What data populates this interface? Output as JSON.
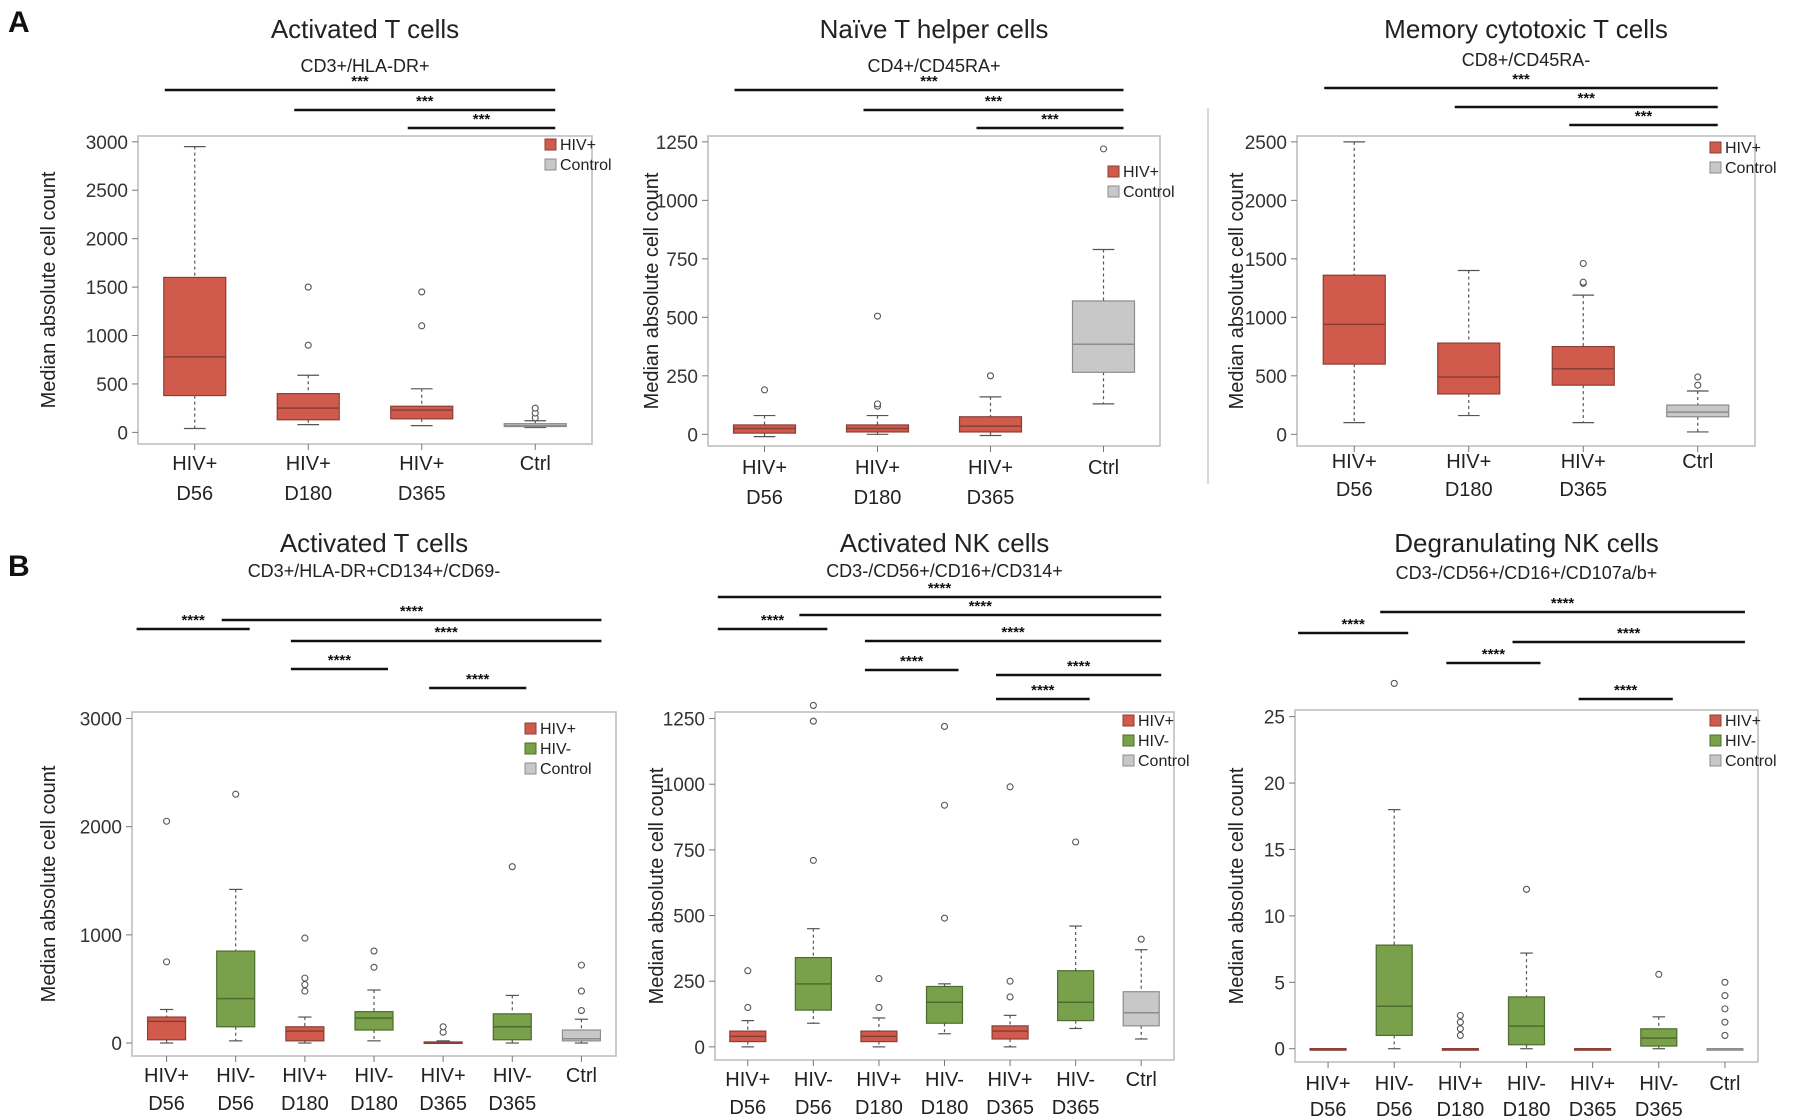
{
  "panel_labels": [
    "A",
    "B"
  ],
  "colors": {
    "hiv_pos": "#d05a4c",
    "hiv_neg": "#79a04a",
    "control": "#c8c8c8",
    "frame": "#bbbbbb"
  },
  "chart_data": [
    {
      "type": "boxplot",
      "panel": "A",
      "title": "Activated T cells",
      "subtitle": "CD3+/HLA-DR+",
      "ylabel": "Median absolute cell count",
      "ylim": [
        0,
        3000
      ],
      "yticks": [
        0,
        500,
        1000,
        1500,
        2000,
        2500,
        3000
      ],
      "legend": [
        {
          "label": "HIV+",
          "group": "hiv_pos"
        },
        {
          "label": "Control",
          "group": "control"
        }
      ],
      "boxes": [
        {
          "x1": "HIV+",
          "x2": "D56",
          "group": "hiv_pos",
          "whislo": 40,
          "q1": 380,
          "med": 780,
          "q3": 1600,
          "whishi": 2950,
          "fliers": []
        },
        {
          "x1": "HIV+",
          "x2": "D180",
          "group": "hiv_pos",
          "whislo": 80,
          "q1": 130,
          "med": 250,
          "q3": 400,
          "whishi": 590,
          "fliers": [
            900,
            1500
          ]
        },
        {
          "x1": "HIV+",
          "x2": "D365",
          "group": "hiv_pos",
          "whislo": 70,
          "q1": 140,
          "med": 230,
          "q3": 270,
          "whishi": 450,
          "fliers": [
            1100,
            1450
          ]
        },
        {
          "x1": "Ctrl",
          "x2": "",
          "group": "control",
          "whislo": 50,
          "q1": 60,
          "med": 70,
          "q3": 90,
          "whishi": 120,
          "fliers": [
            150,
            200,
            250
          ]
        }
      ],
      "comparisons": [
        {
          "from": 0,
          "to": 3,
          "label": "***"
        },
        {
          "from": 1,
          "to": 3,
          "label": "***"
        },
        {
          "from": 2,
          "to": 3,
          "label": "***"
        }
      ]
    },
    {
      "type": "boxplot",
      "panel": "",
      "title": "Naïve T helper cells",
      "subtitle": "CD4+/CD45RA+",
      "ylabel": "Median absolute cell count",
      "ylim": [
        0,
        1250
      ],
      "yticks": [
        0,
        250,
        500,
        750,
        1000,
        1250
      ],
      "legend": [
        {
          "label": "HIV+",
          "group": "hiv_pos"
        },
        {
          "label": "Control",
          "group": "control"
        }
      ],
      "boxes": [
        {
          "x1": "HIV+",
          "x2": "D56",
          "group": "hiv_pos",
          "whislo": -10,
          "q1": 5,
          "med": 25,
          "q3": 40,
          "whishi": 80,
          "fliers": [
            190
          ]
        },
        {
          "x1": "HIV+",
          "x2": "D180",
          "group": "hiv_pos",
          "whislo": 0,
          "q1": 10,
          "med": 25,
          "q3": 40,
          "whishi": 80,
          "fliers": [
            120,
            130,
            505
          ]
        },
        {
          "x1": "HIV+",
          "x2": "D365",
          "group": "hiv_pos",
          "whislo": -5,
          "q1": 10,
          "med": 35,
          "q3": 75,
          "whishi": 160,
          "fliers": [
            250
          ]
        },
        {
          "x1": "Ctrl",
          "x2": "",
          "group": "control",
          "whislo": 130,
          "q1": 265,
          "med": 385,
          "q3": 570,
          "whishi": 790,
          "fliers": [
            1220
          ]
        }
      ],
      "comparisons": [
        {
          "from": 0,
          "to": 3,
          "label": "***"
        },
        {
          "from": 1,
          "to": 3,
          "label": "***"
        },
        {
          "from": 2,
          "to": 3,
          "label": "***"
        }
      ]
    },
    {
      "type": "boxplot",
      "panel": "",
      "title": "Memory  cytotoxic T cells",
      "subtitle": "CD8+/CD45RA-",
      "ylabel": "Median absolute cell count",
      "ylim": [
        0,
        2500
      ],
      "yticks": [
        0,
        500,
        1000,
        1500,
        2000,
        2500
      ],
      "legend": [
        {
          "label": "HIV+",
          "group": "hiv_pos"
        },
        {
          "label": "Control",
          "group": "control"
        }
      ],
      "boxes": [
        {
          "x1": "HIV+",
          "x2": "D56",
          "group": "hiv_pos",
          "whislo": 100,
          "q1": 600,
          "med": 940,
          "q3": 1360,
          "whishi": 2500,
          "fliers": []
        },
        {
          "x1": "HIV+",
          "x2": "D180",
          "group": "hiv_pos",
          "whislo": 160,
          "q1": 345,
          "med": 490,
          "q3": 780,
          "whishi": 1400,
          "fliers": []
        },
        {
          "x1": "HIV+",
          "x2": "D365",
          "group": "hiv_pos",
          "whislo": 100,
          "q1": 420,
          "med": 560,
          "q3": 750,
          "whishi": 1190,
          "fliers": [
            1290,
            1300,
            1460
          ]
        },
        {
          "x1": "Ctrl",
          "x2": "",
          "group": "control",
          "whislo": 20,
          "q1": 150,
          "med": 190,
          "q3": 250,
          "whishi": 370,
          "fliers": [
            420,
            490
          ]
        }
      ],
      "comparisons": [
        {
          "from": 0,
          "to": 3,
          "label": "***"
        },
        {
          "from": 1,
          "to": 3,
          "label": "***"
        },
        {
          "from": 2,
          "to": 3,
          "label": "***"
        }
      ]
    },
    {
      "type": "boxplot",
      "panel": "B",
      "title": "Activated T cells",
      "subtitle": "CD3+/HLA-DR+CD134+/CD69-",
      "ylabel": "Median absolute cell count",
      "ylim": [
        0,
        3000
      ],
      "yticks": [
        0,
        1000,
        2000,
        3000
      ],
      "legend": [
        {
          "label": "HIV+",
          "group": "hiv_pos"
        },
        {
          "label": "HIV-",
          "group": "hiv_neg"
        },
        {
          "label": "Control",
          "group": "control"
        }
      ],
      "boxes": [
        {
          "x1": "HIV+",
          "x2": "D56",
          "group": "hiv_pos",
          "whislo": 0,
          "q1": 30,
          "med": 200,
          "q3": 240,
          "whishi": 310,
          "fliers": [
            750,
            2050
          ]
        },
        {
          "x1": "HIV-",
          "x2": "D56",
          "group": "hiv_neg",
          "whislo": 20,
          "q1": 150,
          "med": 410,
          "q3": 850,
          "whishi": 1420,
          "fliers": [
            2300
          ]
        },
        {
          "x1": "HIV+",
          "x2": "D180",
          "group": "hiv_pos",
          "whislo": 0,
          "q1": 20,
          "med": 110,
          "q3": 150,
          "whishi": 240,
          "fliers": [
            480,
            540,
            600,
            970
          ]
        },
        {
          "x1": "HIV-",
          "x2": "D180",
          "group": "hiv_neg",
          "whislo": 20,
          "q1": 120,
          "med": 230,
          "q3": 290,
          "whishi": 490,
          "fliers": [
            700,
            850
          ]
        },
        {
          "x1": "HIV+",
          "x2": "D365",
          "group": "hiv_pos",
          "whislo": 0,
          "q1": 0,
          "med": 0,
          "q3": 10,
          "whishi": 20,
          "fliers": [
            100,
            150
          ]
        },
        {
          "x1": "HIV-",
          "x2": "D365",
          "group": "hiv_neg",
          "whislo": 0,
          "q1": 30,
          "med": 150,
          "q3": 270,
          "whishi": 440,
          "fliers": [
            1630
          ]
        },
        {
          "x1": "Ctrl",
          "x2": "",
          "group": "control",
          "whislo": 0,
          "q1": 20,
          "med": 40,
          "q3": 120,
          "whishi": 220,
          "fliers": [
            300,
            480,
            720
          ]
        }
      ],
      "comparisons": [
        {
          "from": 0,
          "to": 1,
          "label": "****"
        },
        {
          "from": 1,
          "to": 6,
          "label": "****"
        },
        {
          "from": 2,
          "to": 6,
          "label": "****"
        },
        {
          "from": 2,
          "to": 3,
          "label": "****"
        },
        {
          "from": 4,
          "to": 5,
          "label": "****"
        }
      ]
    },
    {
      "type": "boxplot",
      "panel": "",
      "title": "Activated NK cells",
      "subtitle": "CD3-/CD56+/CD16+/CD314+",
      "ylabel": "Median absolute cell count",
      "ylim": [
        0,
        1250
      ],
      "yticks": [
        0,
        250,
        500,
        750,
        1000,
        1250
      ],
      "legend": [
        {
          "label": "HIV+",
          "group": "hiv_pos"
        },
        {
          "label": "HIV-",
          "group": "hiv_neg"
        },
        {
          "label": "Control",
          "group": "control"
        }
      ],
      "boxes": [
        {
          "x1": "HIV+",
          "x2": "D56",
          "group": "hiv_pos",
          "whislo": 0,
          "q1": 20,
          "med": 40,
          "q3": 60,
          "whishi": 100,
          "fliers": [
            150,
            290
          ]
        },
        {
          "x1": "HIV-",
          "x2": "D56",
          "group": "hiv_neg",
          "whislo": 90,
          "q1": 140,
          "med": 240,
          "q3": 340,
          "whishi": 450,
          "fliers": [
            710,
            1240,
            1300
          ]
        },
        {
          "x1": "HIV+",
          "x2": "D180",
          "group": "hiv_pos",
          "whislo": 0,
          "q1": 20,
          "med": 40,
          "q3": 60,
          "whishi": 110,
          "fliers": [
            150,
            260
          ]
        },
        {
          "x1": "HIV-",
          "x2": "D180",
          "group": "hiv_neg",
          "whislo": 50,
          "q1": 90,
          "med": 170,
          "q3": 230,
          "whishi": 240,
          "fliers": [
            490,
            920,
            1220
          ]
        },
        {
          "x1": "HIV+",
          "x2": "D365",
          "group": "hiv_pos",
          "whislo": 0,
          "q1": 30,
          "med": 60,
          "q3": 80,
          "whishi": 120,
          "fliers": [
            190,
            250,
            990
          ]
        },
        {
          "x1": "HIV-",
          "x2": "D365",
          "group": "hiv_neg",
          "whislo": 70,
          "q1": 100,
          "med": 170,
          "q3": 290,
          "whishi": 460,
          "fliers": [
            780
          ]
        },
        {
          "x1": "Ctrl",
          "x2": "",
          "group": "control",
          "whislo": 30,
          "q1": 80,
          "med": 130,
          "q3": 210,
          "whishi": 370,
          "fliers": [
            410
          ]
        }
      ],
      "comparisons": [
        {
          "from": 0,
          "to": 6,
          "label": "****"
        },
        {
          "from": 0,
          "to": 1,
          "label": "****"
        },
        {
          "from": 1,
          "to": 6,
          "label": "****"
        },
        {
          "from": 2,
          "to": 6,
          "label": "****"
        },
        {
          "from": 2,
          "to": 3,
          "label": "****"
        },
        {
          "from": 4,
          "to": 6,
          "label": "****"
        },
        {
          "from": 4,
          "to": 5,
          "label": "****"
        }
      ]
    },
    {
      "type": "boxplot",
      "panel": "",
      "title": "Degranulating NK cells",
      "subtitle": "CD3-/CD56+/CD16+/CD107a/b+",
      "ylabel": "Median absolute cell count",
      "ylim": [
        0,
        25
      ],
      "yticks": [
        0,
        5,
        10,
        15,
        20,
        25
      ],
      "legend": [
        {
          "label": "HIV+",
          "group": "hiv_pos"
        },
        {
          "label": "HIV-",
          "group": "hiv_neg"
        },
        {
          "label": "Control",
          "group": "control"
        }
      ],
      "boxes": [
        {
          "x1": "HIV+",
          "x2": "D56",
          "group": "hiv_pos",
          "whislo": 0,
          "q1": 0,
          "med": 0,
          "q3": 0,
          "whishi": 0,
          "fliers": []
        },
        {
          "x1": "HIV-",
          "x2": "D56",
          "group": "hiv_neg",
          "whislo": 0,
          "q1": 1,
          "med": 3.2,
          "q3": 7.8,
          "whishi": 18,
          "fliers": [
            27.5
          ]
        },
        {
          "x1": "HIV+",
          "x2": "D180",
          "group": "hiv_pos",
          "whislo": 0,
          "q1": 0,
          "med": 0,
          "q3": 0,
          "whishi": 0,
          "fliers": [
            1,
            1.5,
            2,
            2.5
          ]
        },
        {
          "x1": "HIV-",
          "x2": "D180",
          "group": "hiv_neg",
          "whislo": 0,
          "q1": 0.3,
          "med": 1.7,
          "q3": 3.9,
          "whishi": 7.2,
          "fliers": [
            12
          ]
        },
        {
          "x1": "HIV+",
          "x2": "D365",
          "group": "hiv_pos",
          "whislo": 0,
          "q1": 0,
          "med": 0,
          "q3": 0,
          "whishi": 0,
          "fliers": []
        },
        {
          "x1": "HIV-",
          "x2": "D365",
          "group": "hiv_neg",
          "whislo": 0,
          "q1": 0.2,
          "med": 0.8,
          "q3": 1.5,
          "whishi": 2.4,
          "fliers": [
            5.6
          ]
        },
        {
          "x1": "Ctrl",
          "x2": "",
          "group": "control",
          "whislo": 0,
          "q1": 0,
          "med": 0,
          "q3": 0,
          "whishi": 0,
          "fliers": [
            1,
            2,
            3,
            4,
            5
          ]
        }
      ],
      "comparisons": [
        {
          "from": 0,
          "to": 1,
          "label": "****"
        },
        {
          "from": 1,
          "to": 6,
          "label": "****"
        },
        {
          "from": 2,
          "to": 3,
          "label": "****"
        },
        {
          "from": 3,
          "to": 6,
          "label": "****"
        },
        {
          "from": 4,
          "to": 5,
          "label": "****"
        }
      ]
    }
  ]
}
